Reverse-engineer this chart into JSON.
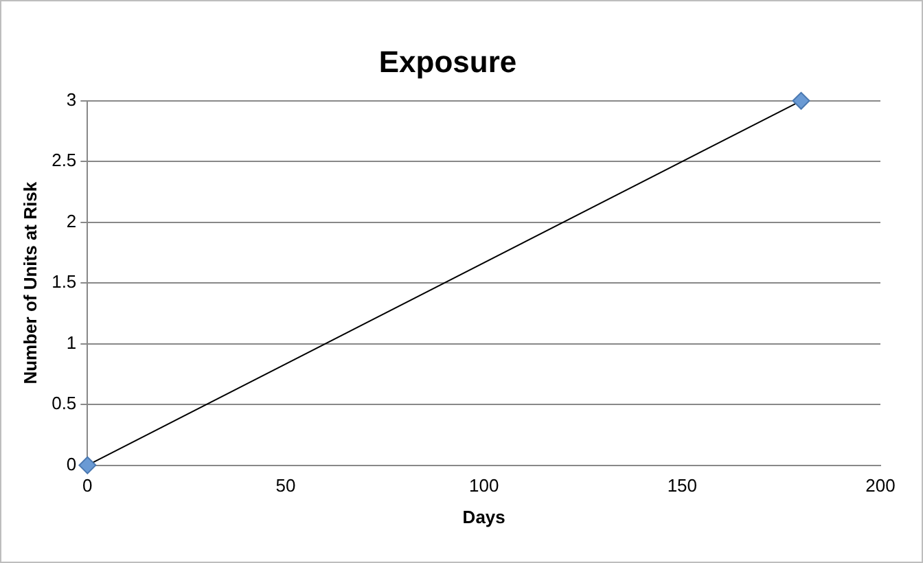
{
  "chart_data": {
    "type": "scatter",
    "title": "Exposure",
    "xlabel": "Days",
    "ylabel": "Number of Units at Risk",
    "x": [
      0,
      180
    ],
    "series": [
      {
        "color": "#6a9ad4",
        "values": [
          0,
          3
        ],
        "marker": "diamond"
      },
      {
        "type": "line",
        "color": "#000000",
        "x": [
          0,
          180
        ],
        "values": [
          0,
          3
        ],
        "marker": "none",
        "line_style": "solid"
      }
    ],
    "xlim": [
      0,
      200
    ],
    "xticks": [
      0,
      50,
      100,
      150,
      200
    ],
    "ylim": [
      0,
      3
    ],
    "yticks": [
      0,
      0.5,
      1,
      1.5,
      2,
      2.5,
      3
    ],
    "grid": "y",
    "legend": false
  }
}
